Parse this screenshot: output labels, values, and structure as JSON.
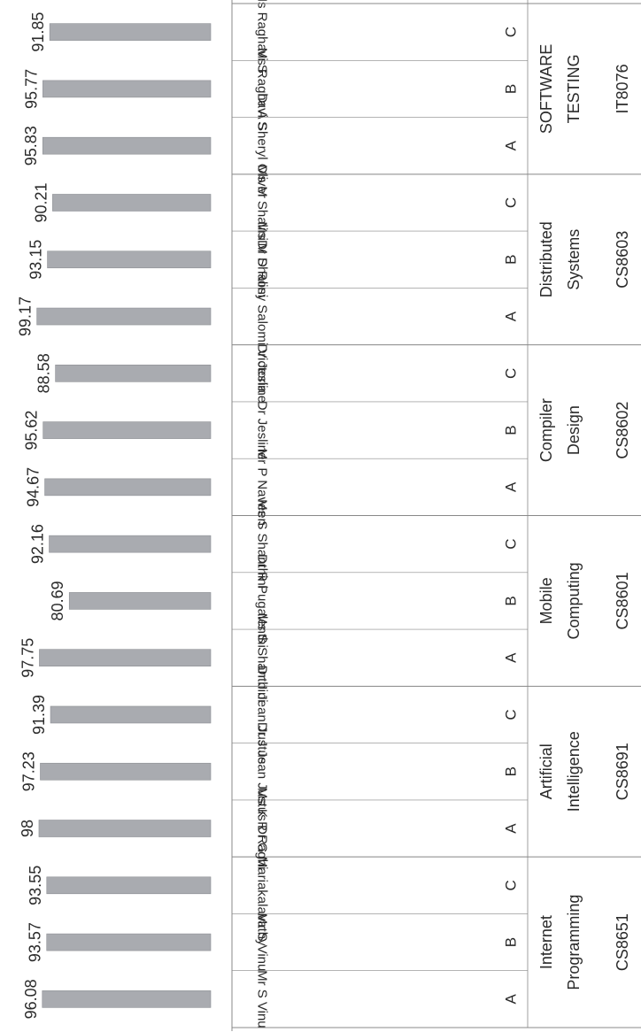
{
  "chart_data": {
    "type": "bar",
    "orientation": "horizontal",
    "value_axis": {
      "min": 0,
      "max": 100
    },
    "grid": false,
    "legend": "none",
    "colors": {
      "bar": "#a9abb0",
      "bar_edge": "#8d8f94",
      "table_line": "#888888",
      "text": "#2a2a2a"
    },
    "subjects": [
      {
        "name": "Internet Programming",
        "code": "CS8651",
        "sections": [
          {
            "section": "A",
            "faculty": "Mr S Vinu",
            "value": 96.08
          },
          {
            "section": "B",
            "faculty": "Mr S Vinu",
            "value": 93.57
          },
          {
            "section": "C",
            "faculty": "Dr G Mariakalavathy",
            "value": 93.55
          }
        ]
      },
      {
        "name": "Artificial Intelligence",
        "code": "CS8691",
        "sections": [
          {
            "section": "A",
            "faculty": "Ms K R Raghi",
            "value": 98
          },
          {
            "section": "B",
            "faculty": "Dr J Jean Justus",
            "value": 97.23
          },
          {
            "section": "C",
            "faculty": "Dr J Jean Justus",
            "value": 91.39
          }
        ]
      },
      {
        "name": "Mobile Computing",
        "code": "CS8601",
        "sections": [
          {
            "section": "A",
            "faculty": "Ms S Shanthini",
            "value": 97.75
          },
          {
            "section": "B",
            "faculty": "Dr R Pugalenthi",
            "value": 80.69
          },
          {
            "section": "C",
            "faculty": "Ms S Shanthini",
            "value": 92.16
          }
        ]
      },
      {
        "name": "Compiler Design",
        "code": "CS8602",
        "sections": [
          {
            "section": "A",
            "faculty": "Mr P Naveen",
            "value": 94.67
          },
          {
            "section": "B",
            "faculty": "Dr Jesline",
            "value": 95.62
          },
          {
            "section": "C",
            "faculty": "Dr Jesline",
            "value": 88.58
          }
        ]
      },
      {
        "name": "Distributed Systems",
        "code": "CS8603",
        "sections": [
          {
            "section": "A",
            "faculty": "Dr D Rosy Salomi Victoria",
            "value": 99.17
          },
          {
            "section": "B",
            "faculty": "Ms M Shalini",
            "value": 93.15
          },
          {
            "section": "C",
            "faculty": "Ms M Shalini",
            "value": 90.21
          }
        ]
      },
      {
        "name": "SOFTWARE TESTING",
        "code": "IT8076",
        "sections": [
          {
            "section": "A",
            "faculty": "Dr A Sheryl Oliver",
            "value": 95.83
          },
          {
            "section": "B",
            "faculty": "Ms Raghavi S",
            "value": 95.77
          },
          {
            "section": "C",
            "faculty": "Ms Raghavi S",
            "value": 91.85
          }
        ]
      }
    ]
  }
}
